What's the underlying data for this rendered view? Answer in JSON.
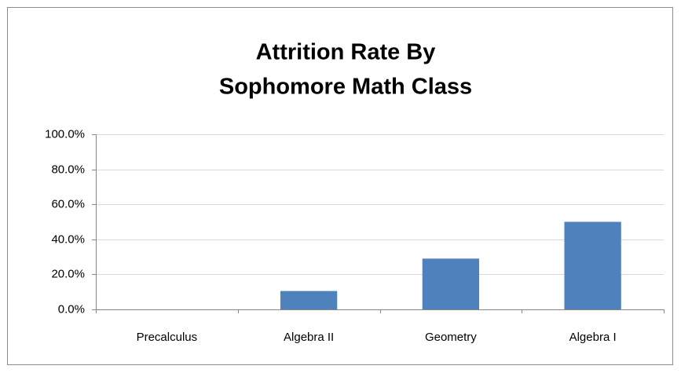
{
  "chart_data": {
    "type": "bar",
    "title": [
      "Attrition Rate By",
      "Sophomore Math Class"
    ],
    "categories": [
      "Precalculus",
      "Algebra II",
      "Geometry",
      "Algebra I"
    ],
    "values": [
      0,
      10.5,
      29,
      50
    ],
    "color": "#4f81bd",
    "ylim": [
      0,
      100
    ],
    "yticks": [
      {
        "value": 0,
        "label": "0.0%"
      },
      {
        "value": 20,
        "label": "20.0%"
      },
      {
        "value": 40,
        "label": "40.0%"
      },
      {
        "value": 60,
        "label": "60.0%"
      },
      {
        "value": 80,
        "label": "80.0%"
      },
      {
        "value": 100,
        "label": "100.0%"
      }
    ],
    "grid": true
  }
}
